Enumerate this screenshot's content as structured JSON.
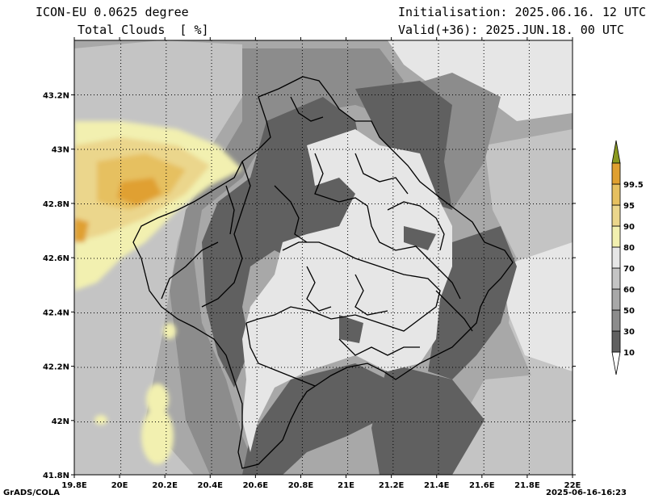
{
  "header": {
    "model": "ICON-EU 0.0625 degree",
    "variable": "Total Clouds  [ %]",
    "init": "Initialisation: 2025.06.16. 12 UTC",
    "valid": "Valid(+36): 2025.JUN.18. 00 UTC"
  },
  "footer": {
    "left": "GrADS/COLA",
    "right": "2025-06-16-16:23"
  },
  "axes": {
    "x_ticks": [
      "19.8E",
      "20E",
      "20.2E",
      "20.4E",
      "20.6E",
      "20.8E",
      "21E",
      "21.2E",
      "21.4E",
      "21.6E",
      "21.8E",
      "22E"
    ],
    "y_ticks": [
      "43.2N",
      "43N",
      "42.8N",
      "42.6N",
      "42.4N",
      "42.2N",
      "42N",
      "41.8N"
    ]
  },
  "colorbar": {
    "levels": [
      "10",
      "30",
      "50",
      "60",
      "70",
      "80",
      "90",
      "95",
      "99.5"
    ],
    "colors": [
      "#606060",
      "#8c8c8c",
      "#a8a8a8",
      "#c4c4c4",
      "#e6e6e6",
      "#f2f0b0",
      "#ebd68c",
      "#e6c060",
      "#e0a030"
    ],
    "top_arrow_color": "#8a9a20",
    "bottom_arrow_color": "#ffffff"
  }
}
